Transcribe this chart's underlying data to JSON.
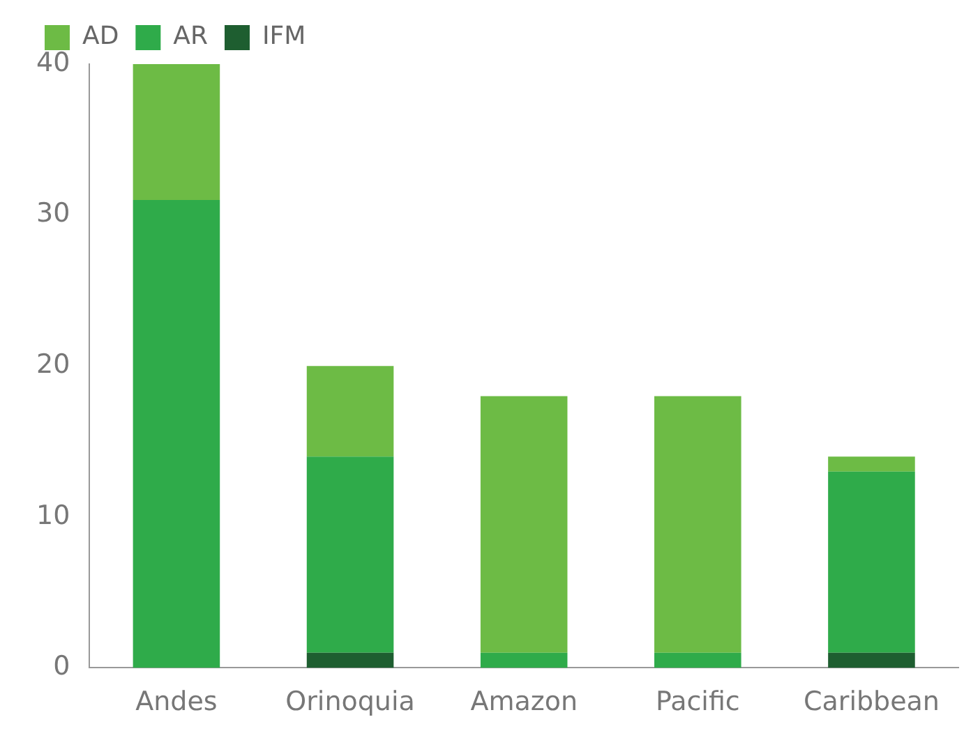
{
  "chart_data": {
    "type": "bar",
    "stacked": true,
    "categories": [
      "Andes",
      "Orinoquia",
      "Amazon",
      "Pacific",
      "Caribbean"
    ],
    "series": [
      {
        "name": "IFM",
        "color": "#1e5e30",
        "values": [
          0,
          1,
          0,
          0,
          1
        ]
      },
      {
        "name": "AR",
        "color": "#2fab4a",
        "values": [
          31,
          13,
          1,
          1,
          12
        ]
      },
      {
        "name": "AD",
        "color": "#6dbb45",
        "values": [
          9,
          6,
          17,
          17,
          1
        ]
      }
    ],
    "ylim": [
      0,
      40
    ],
    "yticks": [
      0,
      10,
      20,
      30,
      40
    ],
    "grid": false,
    "legend": "top left"
  }
}
